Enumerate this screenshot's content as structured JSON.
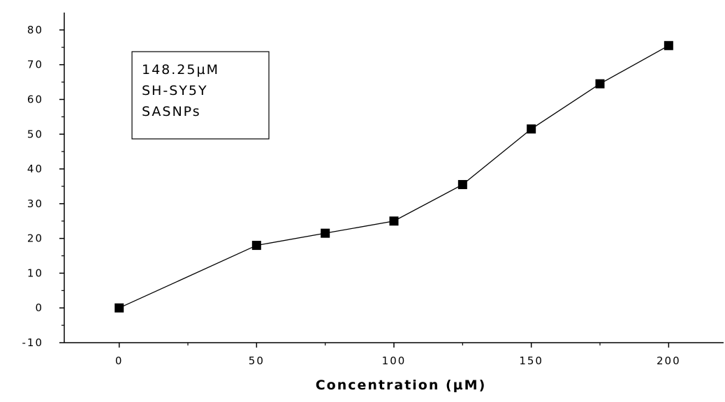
{
  "chart_data": {
    "type": "line",
    "title": "",
    "xlabel": "Concentration (µM)",
    "ylabel": "",
    "xlim": [
      -20,
      220
    ],
    "ylim": [
      -10,
      85
    ],
    "x_ticks": [
      0,
      50,
      100,
      150,
      200
    ],
    "x_tick_labels": [
      "0",
      "50",
      "100",
      "150",
      "200"
    ],
    "y_ticks": [
      -10,
      0,
      10,
      20,
      30,
      40,
      50,
      60,
      70,
      80
    ],
    "y_tick_labels": [
      "-10",
      "0",
      "10",
      "20",
      "30",
      "40",
      "50",
      "60",
      "70",
      "80"
    ],
    "grid": false,
    "marker": "square",
    "series": [
      {
        "x": [
          0,
          50,
          75,
          100,
          125,
          150,
          175,
          200
        ],
        "y": [
          0,
          18,
          21.5,
          25,
          35.5,
          51.5,
          64.5,
          75.5
        ]
      }
    ],
    "annotation_lines": [
      "148.25µM",
      "SH-SY5Y",
      "SASNPs"
    ],
    "colors": {
      "line": "#000000",
      "marker": "#000000",
      "axis": "#000000"
    }
  }
}
